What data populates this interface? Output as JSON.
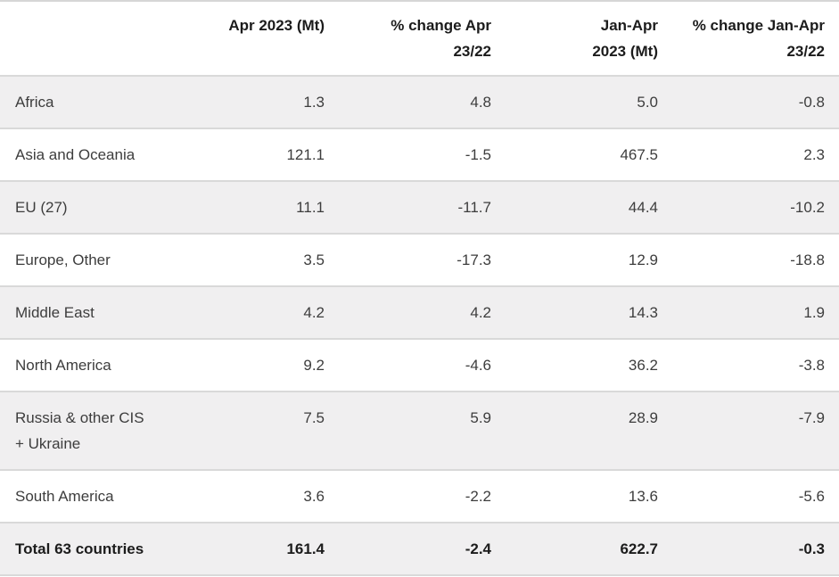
{
  "colors": {
    "row_stripe": "#f0eff0",
    "row_border": "#d9d9d9",
    "body_text": "#3d3d3d",
    "heading_text": "#1c1c1c",
    "background": "#ffffff"
  },
  "chart_data": {
    "type": "table",
    "columns": [
      "",
      "Apr 2023 (Mt)",
      "% change Apr\n23/22",
      "Jan-Apr\n2023 (Mt)",
      "% change Jan-Apr\n23/22"
    ],
    "rows": [
      {
        "label": "Africa",
        "values": [
          "1.3",
          "4.8",
          "5.0",
          "-0.8"
        ]
      },
      {
        "label": "Asia and Oceania",
        "values": [
          "121.1",
          "-1.5",
          "467.5",
          "2.3"
        ]
      },
      {
        "label": "EU (27)",
        "values": [
          "11.1",
          "-11.7",
          "44.4",
          "-10.2"
        ]
      },
      {
        "label": "Europe, Other",
        "values": [
          "3.5",
          "-17.3",
          "12.9",
          "-18.8"
        ]
      },
      {
        "label": "Middle East",
        "values": [
          "4.2",
          "4.2",
          "14.3",
          "1.9"
        ]
      },
      {
        "label": "North America",
        "values": [
          "9.2",
          "-4.6",
          "36.2",
          "-3.8"
        ]
      },
      {
        "label": "Russia & other CIS\n+ Ukraine",
        "values": [
          "7.5",
          "5.9",
          "28.9",
          "-7.9"
        ]
      },
      {
        "label": "South America",
        "values": [
          "3.6",
          "-2.2",
          "13.6",
          "-5.6"
        ]
      }
    ],
    "total_row": {
      "label": "Total 63 countries",
      "values": [
        "161.4",
        "-2.4",
        "622.7",
        "-0.3"
      ]
    }
  }
}
